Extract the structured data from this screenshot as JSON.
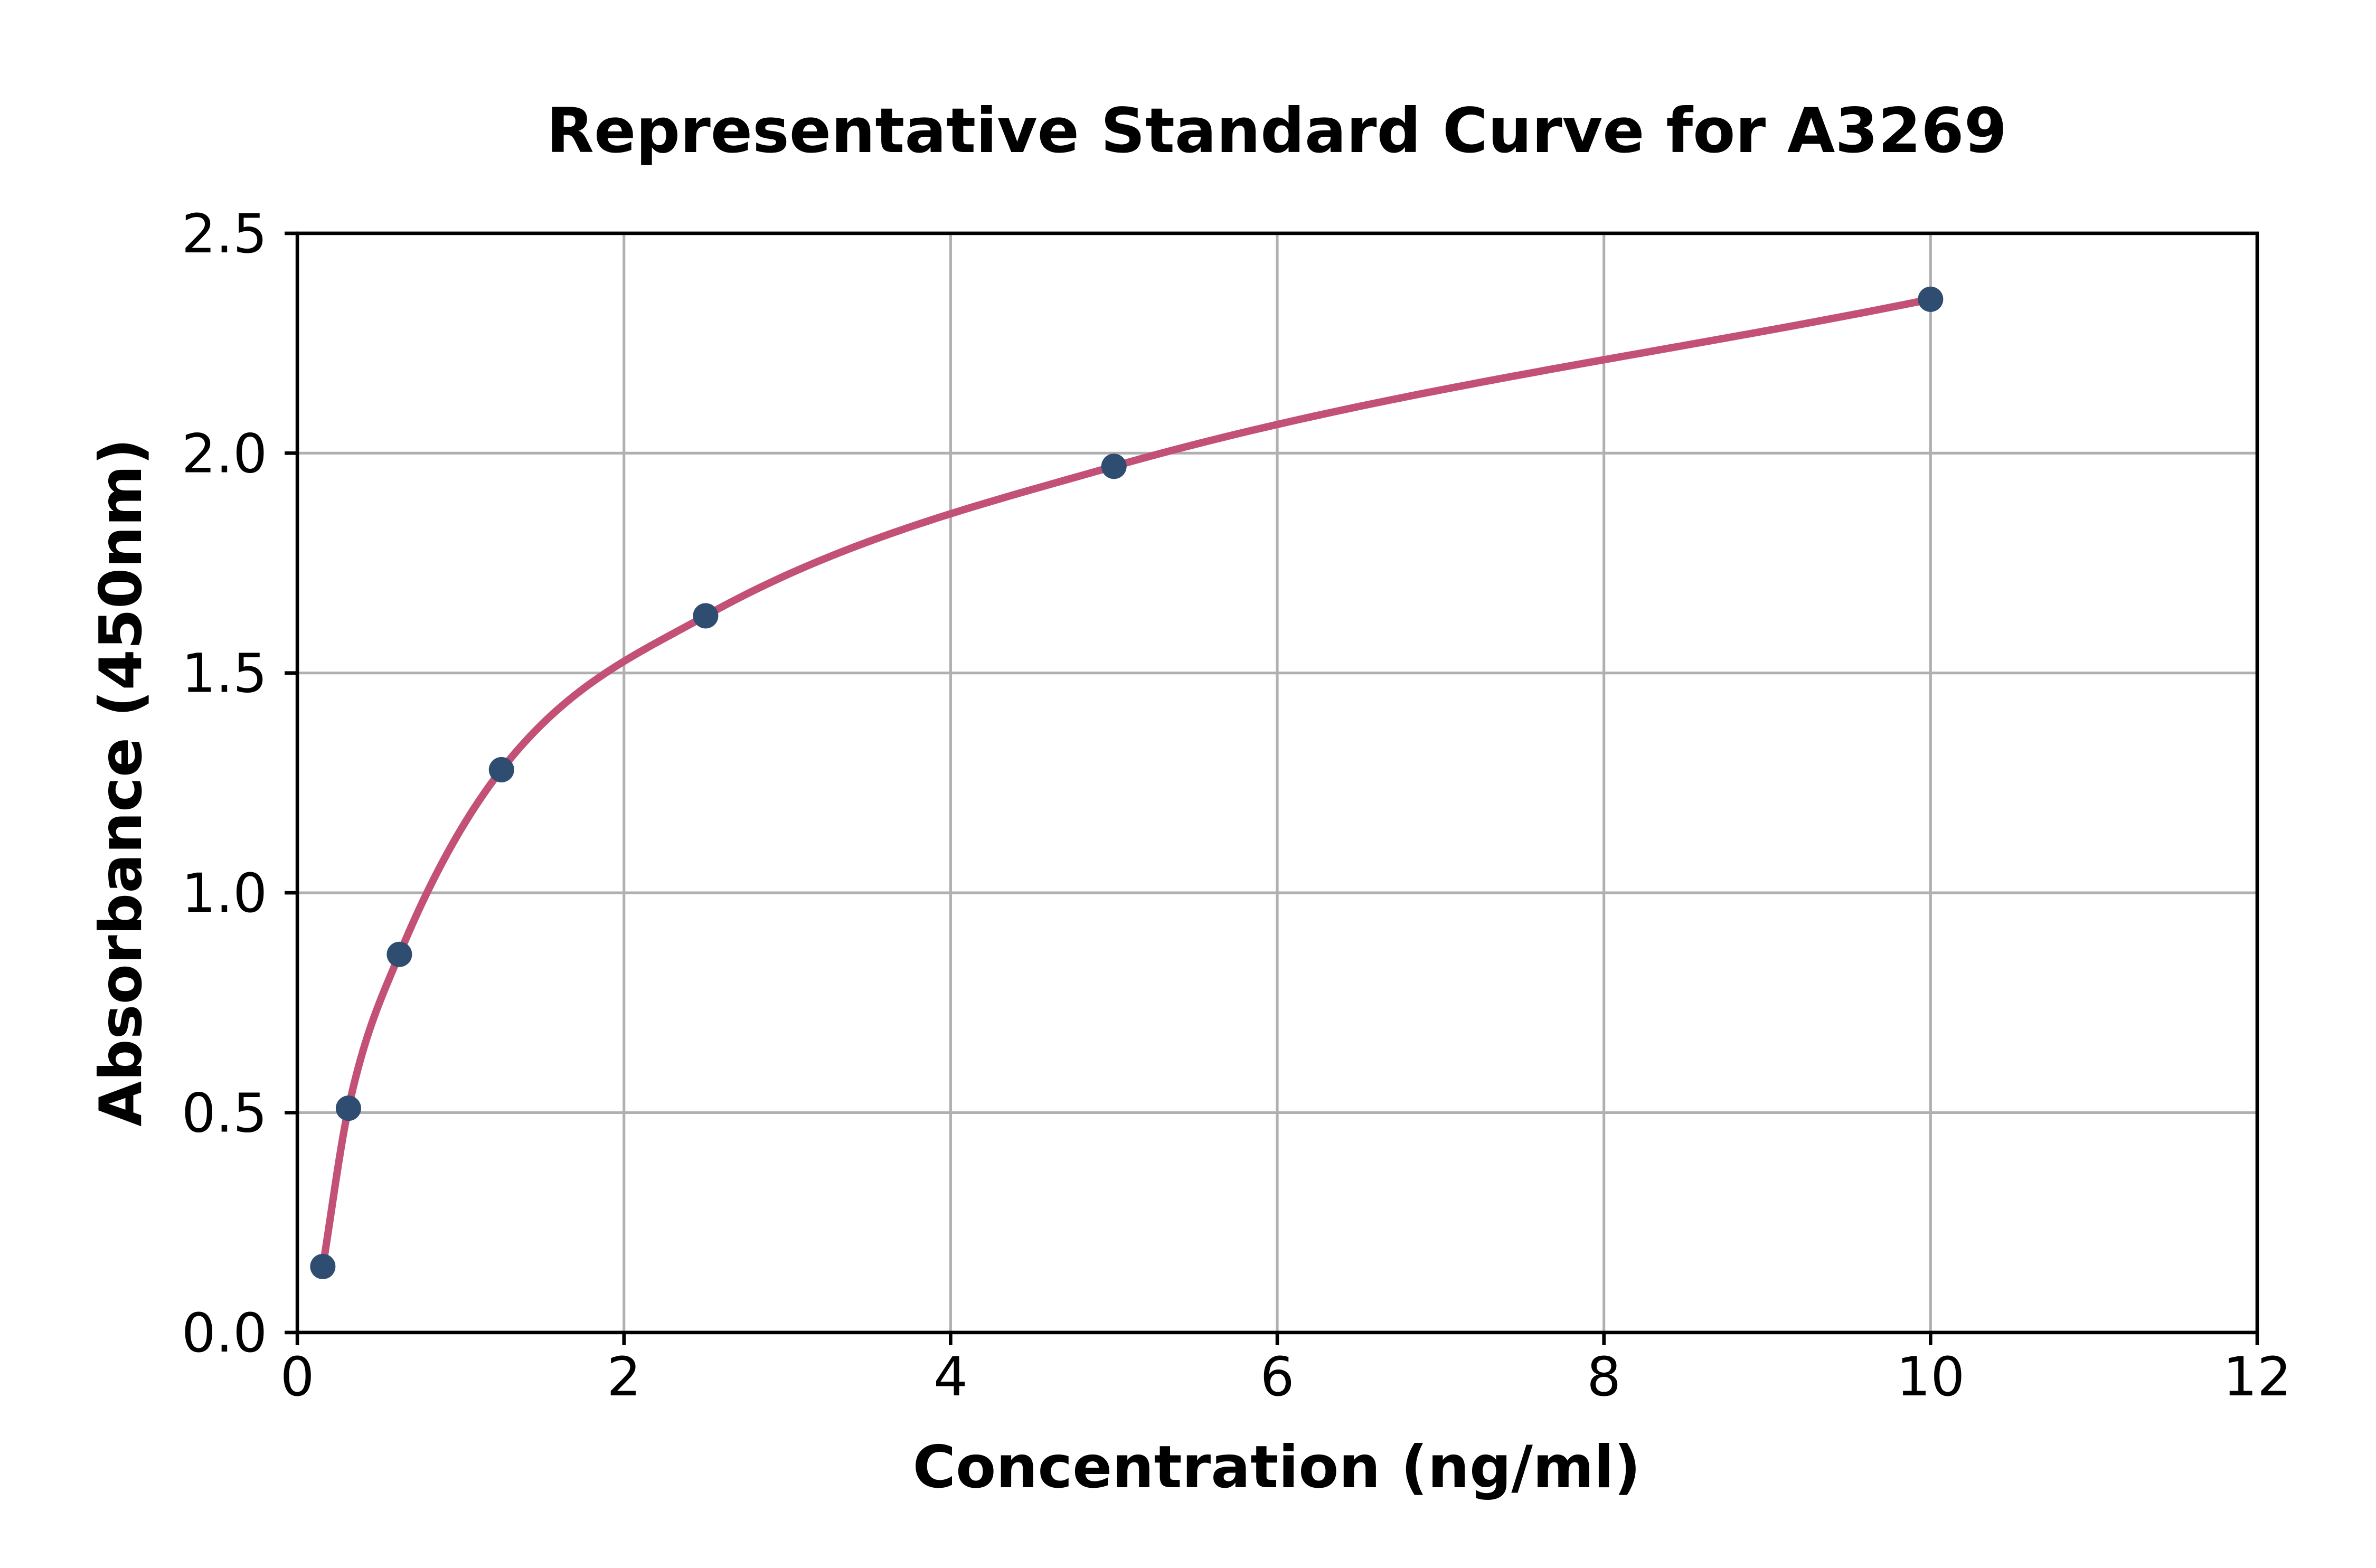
{
  "figure": {
    "background": "#ffffff"
  },
  "chart_data": {
    "type": "scatter",
    "title": "Representative Standard Curve for A3269",
    "xlabel": "Concentration (ng/ml)",
    "ylabel": "Absorbance (450nm)",
    "xlim": [
      0,
      12
    ],
    "ylim": [
      0,
      2.5
    ],
    "x_ticks": [
      0,
      2,
      4,
      6,
      8,
      10,
      12
    ],
    "y_ticks": [
      0.0,
      0.5,
      1.0,
      1.5,
      2.0,
      2.5
    ],
    "grid": true,
    "legend_position": "none",
    "series": [
      {
        "name": "standard-points",
        "kind": "points",
        "x": [
          0.156,
          0.313,
          0.625,
          1.25,
          2.5,
          5,
          10
        ],
        "y": [
          0.15,
          0.51,
          0.86,
          1.28,
          1.63,
          1.97,
          2.35
        ]
      },
      {
        "name": "fitted-curve",
        "kind": "smooth-curve-through-points"
      }
    ],
    "colors": {
      "curve": "#c35176",
      "marker": "#2e4d71",
      "grid": "#b0b0b0",
      "axis": "#000000",
      "background": "#ffffff"
    }
  }
}
